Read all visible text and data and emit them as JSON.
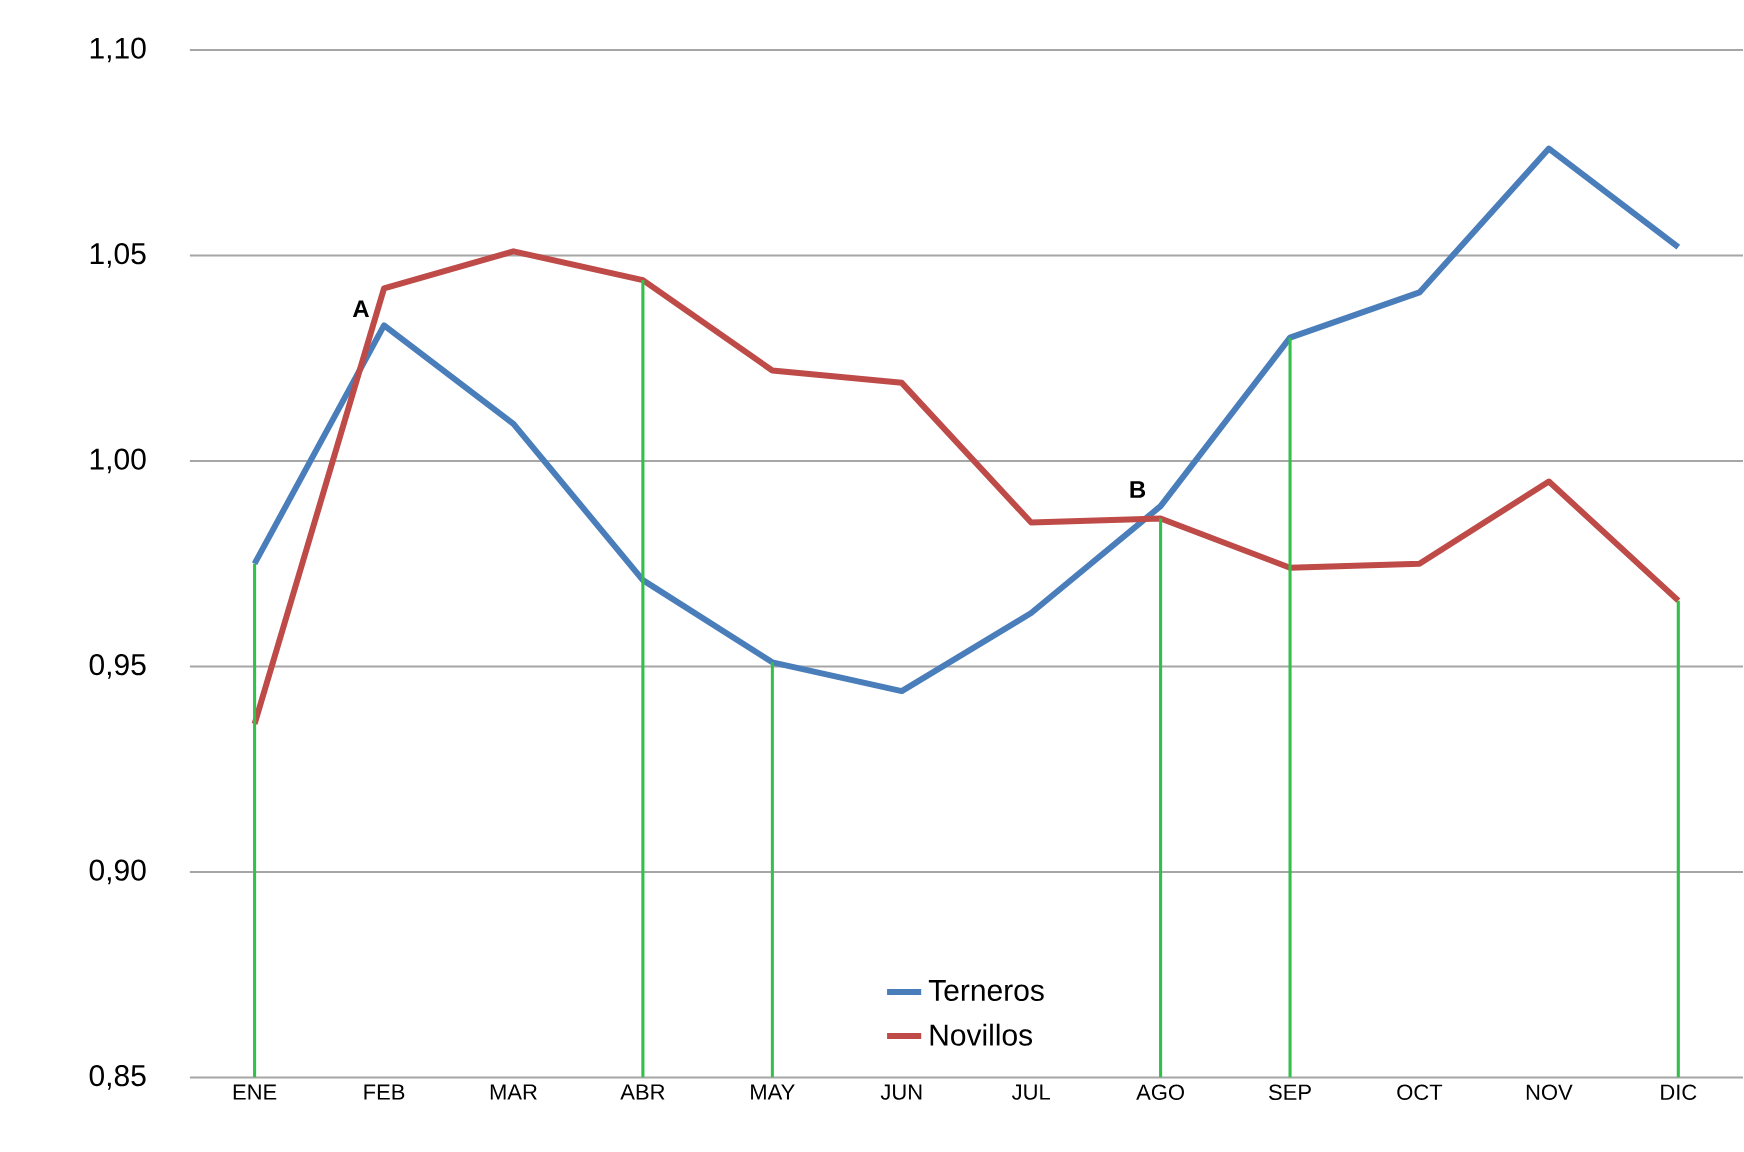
{
  "chart_data": {
    "type": "line",
    "categories": [
      "ENE",
      "FEB",
      "MAR",
      "ABR",
      "MAY",
      "JUN",
      "JUL",
      "AGO",
      "SEP",
      "OCT",
      "NOV",
      "DIC"
    ],
    "series": [
      {
        "name": "Terneros",
        "color": "#4a7ebb",
        "values": [
          0.975,
          1.033,
          1.009,
          0.971,
          0.951,
          0.944,
          0.963,
          0.989,
          1.03,
          1.041,
          1.076,
          1.052
        ]
      },
      {
        "name": "Novillos",
        "color": "#be4b48",
        "values": [
          0.936,
          1.042,
          1.051,
          1.044,
          1.022,
          1.019,
          0.985,
          0.986,
          0.974,
          0.975,
          0.995,
          0.966
        ]
      },
      {
        "type": "bar",
        "color": "#33c04a",
        "values": [
          0.975,
          null,
          null,
          1.044,
          0.951,
          null,
          null,
          0.986,
          1.03,
          null,
          null,
          0.966
        ]
      }
    ],
    "ylim": [
      0.85,
      1.1
    ],
    "yticks": [
      {
        "value": 0.85,
        "label": "0,85"
      },
      {
        "value": 0.9,
        "label": "0,90"
      },
      {
        "value": 0.95,
        "label": "0,95"
      },
      {
        "value": 1.0,
        "label": "1,00"
      },
      {
        "value": 1.05,
        "label": "1,05"
      },
      {
        "value": 1.1,
        "label": "1,10"
      }
    ],
    "grid": "y",
    "legend": "bottom",
    "annotations": [
      {
        "text": "A",
        "x": "FEB",
        "y": 1.033
      },
      {
        "text": "B",
        "x": "AGO",
        "y": 0.989
      }
    ]
  }
}
